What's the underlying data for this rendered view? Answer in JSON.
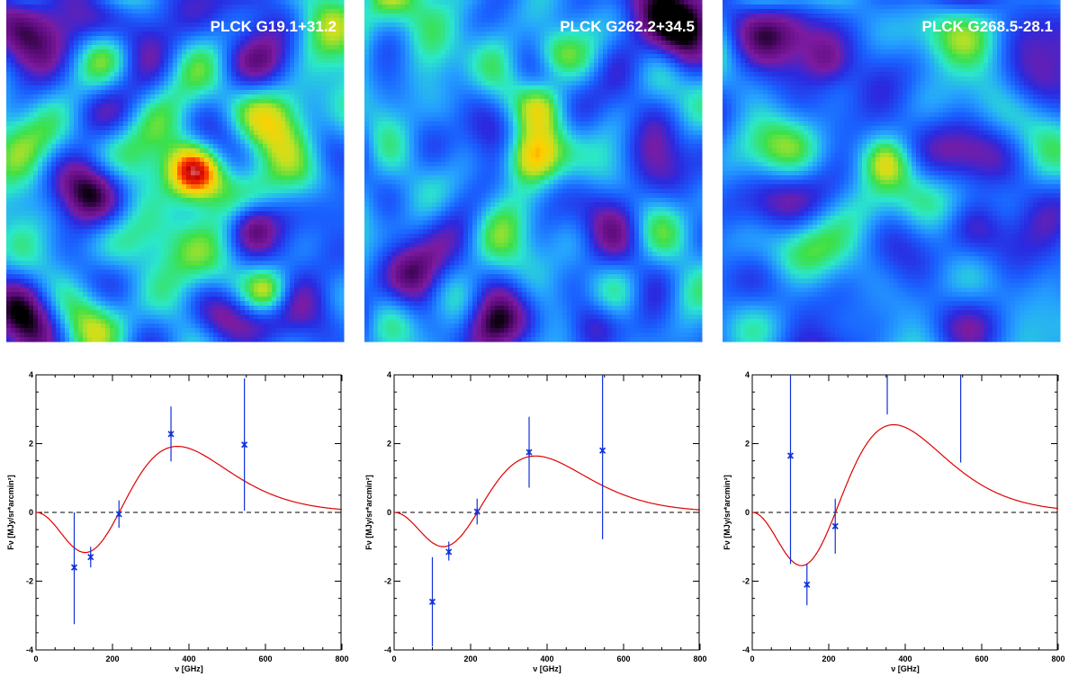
{
  "colors": {
    "model": "#e00000",
    "data": "#1030d8",
    "zero_line": "#000000"
  },
  "chart_data": [
    {
      "type": "map",
      "title": "PLCK G19.1+31.2",
      "colormap": [
        "#000000",
        "#5a0a78",
        "#7d1ba0",
        "#2a2ae0",
        "#1a60ff",
        "#25a0ff",
        "#2be8c8",
        "#3ce04a",
        "#c8e020",
        "#ffd000",
        "#ff4000",
        "#cc0000",
        "#ffffff"
      ],
      "base_level": 0.44,
      "blobs": [
        {
          "x": 0.55,
          "y": 0.5,
          "a": 0.62,
          "s": 0.06
        },
        {
          "x": 0.17,
          "y": 0.08,
          "a": -0.42,
          "s": 0.1
        },
        {
          "x": 0.25,
          "y": 0.55,
          "a": -0.36,
          "s": 0.08
        },
        {
          "x": 0.05,
          "y": 0.93,
          "a": -0.32,
          "s": 0.08
        },
        {
          "x": 0.86,
          "y": 0.9,
          "a": -0.3,
          "s": 0.1
        },
        {
          "x": 0.77,
          "y": 0.85,
          "a": 0.34,
          "s": 0.05
        },
        {
          "x": 0.65,
          "y": 0.08,
          "a": -0.22,
          "s": 0.12
        },
        {
          "x": 0.72,
          "y": 0.65,
          "a": -0.24,
          "s": 0.05
        },
        {
          "x": 0.85,
          "y": 0.33,
          "a": 0.16,
          "s": 0.1
        },
        {
          "x": 0.42,
          "y": 0.72,
          "a": 0.1,
          "s": 0.1
        },
        {
          "x": 0.3,
          "y": 0.14,
          "a": 0.18,
          "s": 0.06
        },
        {
          "x": 0.95,
          "y": 0.6,
          "a": -0.22,
          "s": 0.06
        },
        {
          "x": 0.1,
          "y": 0.4,
          "a": 0.12,
          "s": 0.07
        },
        {
          "x": 0.62,
          "y": 0.92,
          "a": -0.18,
          "s": 0.06
        }
      ]
    },
    {
      "type": "map",
      "title": "PLCK G262.2+34.5",
      "colormap": [
        "#000000",
        "#5a0a78",
        "#7d1ba0",
        "#2a2ae0",
        "#1a60ff",
        "#25a0ff",
        "#2be8c8",
        "#3ce04a",
        "#c8e020",
        "#ffd000",
        "#ff4000",
        "#cc0000",
        "#ffffff"
      ],
      "base_level": 0.4,
      "blobs": [
        {
          "x": 0.48,
          "y": 0.46,
          "a": 0.42,
          "s": 0.06
        },
        {
          "x": 0.55,
          "y": 0.15,
          "a": 0.22,
          "s": 0.05
        },
        {
          "x": 0.52,
          "y": 0.3,
          "a": 0.18,
          "s": 0.05
        },
        {
          "x": 0.9,
          "y": 0.05,
          "a": -0.4,
          "s": 0.1
        },
        {
          "x": 0.15,
          "y": 0.8,
          "a": -0.28,
          "s": 0.07
        },
        {
          "x": 0.35,
          "y": 0.95,
          "a": -0.26,
          "s": 0.06
        },
        {
          "x": 0.68,
          "y": 0.95,
          "a": -0.3,
          "s": 0.06
        },
        {
          "x": 0.05,
          "y": 0.05,
          "a": 0.16,
          "s": 0.08
        },
        {
          "x": 0.2,
          "y": 0.15,
          "a": 0.14,
          "s": 0.07
        },
        {
          "x": 0.8,
          "y": 0.55,
          "a": -0.16,
          "s": 0.1
        },
        {
          "x": 0.92,
          "y": 0.85,
          "a": 0.12,
          "s": 0.06
        },
        {
          "x": 0.3,
          "y": 0.4,
          "a": -0.12,
          "s": 0.08
        }
      ]
    },
    {
      "type": "map",
      "title": "PLCK G268.5-28.1",
      "colormap": [
        "#000000",
        "#5a0a78",
        "#7d1ba0",
        "#2a2ae0",
        "#1a60ff",
        "#25a0ff",
        "#2be8c8",
        "#3ce04a",
        "#c8e020",
        "#ffd000",
        "#ff4000",
        "#cc0000",
        "#ffffff"
      ],
      "base_level": 0.36,
      "blobs": [
        {
          "x": 0.48,
          "y": 0.47,
          "a": 0.22,
          "s": 0.05
        },
        {
          "x": 0.3,
          "y": 0.18,
          "a": -0.16,
          "s": 0.05
        },
        {
          "x": 0.75,
          "y": 0.65,
          "a": -0.14,
          "s": 0.06
        },
        {
          "x": 0.6,
          "y": 0.72,
          "a": 0.12,
          "s": 0.07
        },
        {
          "x": 0.42,
          "y": 0.6,
          "a": 0.1,
          "s": 0.06
        },
        {
          "x": 0.22,
          "y": 0.45,
          "a": 0.08,
          "s": 0.08
        },
        {
          "x": 0.88,
          "y": 0.25,
          "a": -0.1,
          "s": 0.06
        },
        {
          "x": 0.05,
          "y": 0.7,
          "a": 0.06,
          "s": 0.06
        }
      ]
    },
    {
      "type": "scatter",
      "title": "",
      "xlabel": "ν [GHz]",
      "ylabel": "Fν [MJy/sr*arcmin²]",
      "xlim": [
        0,
        800
      ],
      "ylim": [
        -4,
        4
      ],
      "xticks": [
        0,
        200,
        400,
        600,
        800
      ],
      "yticks": [
        -4,
        -2,
        0,
        2,
        4
      ],
      "grid": false,
      "model_amplitude": 1.92,
      "points": [
        {
          "x": 100,
          "y": -1.6,
          "lo": -3.25,
          "hi": 0.0
        },
        {
          "x": 143,
          "y": -1.3,
          "lo": -1.6,
          "hi": -1.0
        },
        {
          "x": 217,
          "y": -0.05,
          "lo": -0.45,
          "hi": 0.35
        },
        {
          "x": 353,
          "y": 2.28,
          "lo": 1.48,
          "hi": 3.08
        },
        {
          "x": 545,
          "y": 1.97,
          "lo": 0.05,
          "hi": 3.9
        }
      ]
    },
    {
      "type": "scatter",
      "title": "",
      "xlabel": "ν [GHz]",
      "ylabel": "Fν [MJy/sr*arcmin²]",
      "xlim": [
        0,
        800
      ],
      "ylim": [
        -4,
        4
      ],
      "xticks": [
        0,
        200,
        400,
        600,
        800
      ],
      "yticks": [
        -4,
        -2,
        0,
        2,
        4
      ],
      "grid": false,
      "model_amplitude": 1.64,
      "points": [
        {
          "x": 100,
          "y": -2.6,
          "lo": -3.9,
          "hi": -1.3
        },
        {
          "x": 143,
          "y": -1.15,
          "lo": -1.4,
          "hi": -0.85
        },
        {
          "x": 217,
          "y": 0.02,
          "lo": -0.35,
          "hi": 0.4
        },
        {
          "x": 353,
          "y": 1.75,
          "lo": 0.72,
          "hi": 2.78
        },
        {
          "x": 545,
          "y": 1.8,
          "lo": -0.78,
          "hi": 4.0
        }
      ]
    },
    {
      "type": "scatter",
      "title": "",
      "xlabel": "ν [GHz]",
      "ylabel": "Fν [MJy/sr*arcmin²]",
      "xlim": [
        0,
        800
      ],
      "ylim": [
        -4,
        4
      ],
      "xticks": [
        0,
        200,
        400,
        600,
        800
      ],
      "yticks": [
        -4,
        -2,
        0,
        2,
        4
      ],
      "grid": false,
      "model_amplitude": 2.55,
      "points": [
        {
          "x": 100,
          "y": 1.65,
          "lo": -1.5,
          "hi": 4.0
        },
        {
          "x": 143,
          "y": -2.1,
          "lo": -2.7,
          "hi": -1.5
        },
        {
          "x": 217,
          "y": -0.4,
          "lo": -1.2,
          "hi": 0.4
        },
        {
          "x": 353,
          "y": null,
          "lo": 2.85,
          "hi": 4.0
        },
        {
          "x": 545,
          "y": null,
          "lo": 1.45,
          "hi": 4.0
        }
      ]
    }
  ]
}
